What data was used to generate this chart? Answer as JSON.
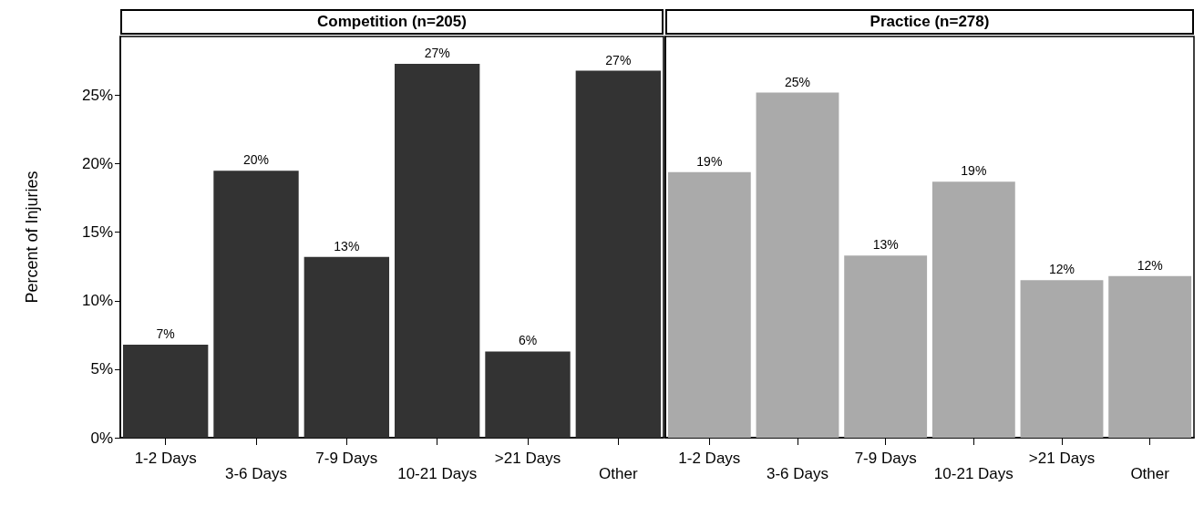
{
  "chart_data": [
    {
      "type": "bar",
      "title": "Competition (n=205)",
      "ylabel": "Percent of Injuries",
      "categories": [
        "1-2 Days",
        "3-6 Days",
        "7-9 Days",
        "10-21 Days",
        ">21 Days",
        "Other"
      ],
      "series": [
        {
          "color": "#333333",
          "values": [
            6.8,
            19.5,
            13.2,
            27.3,
            6.3,
            26.8
          ],
          "value_labels": [
            "7%",
            "20%",
            "13%",
            "27%",
            "6%",
            "27%"
          ]
        }
      ],
      "ylim": [
        0,
        29.3
      ],
      "yticks": [
        {
          "value": 0,
          "label": "0%"
        },
        {
          "value": 5,
          "label": "5%"
        },
        {
          "value": 10,
          "label": "10%"
        },
        {
          "value": 15,
          "label": "15%"
        },
        {
          "value": 20,
          "label": "20%"
        },
        {
          "value": 25,
          "label": "25%"
        }
      ],
      "grid": false
    },
    {
      "type": "bar",
      "title": "Practice (n=278)",
      "categories": [
        "1-2 Days",
        "3-6 Days",
        "7-9 Days",
        "10-21 Days",
        ">21 Days",
        "Other"
      ],
      "series": [
        {
          "color": "#aaaaaa",
          "values": [
            19.4,
            25.2,
            13.3,
            18.7,
            11.5,
            11.8
          ],
          "value_labels": [
            "19%",
            "25%",
            "13%",
            "19%",
            "12%",
            "12%"
          ]
        }
      ],
      "ylim": [
        0,
        29.3
      ],
      "tick_labels": "x",
      "grid": false
    }
  ]
}
